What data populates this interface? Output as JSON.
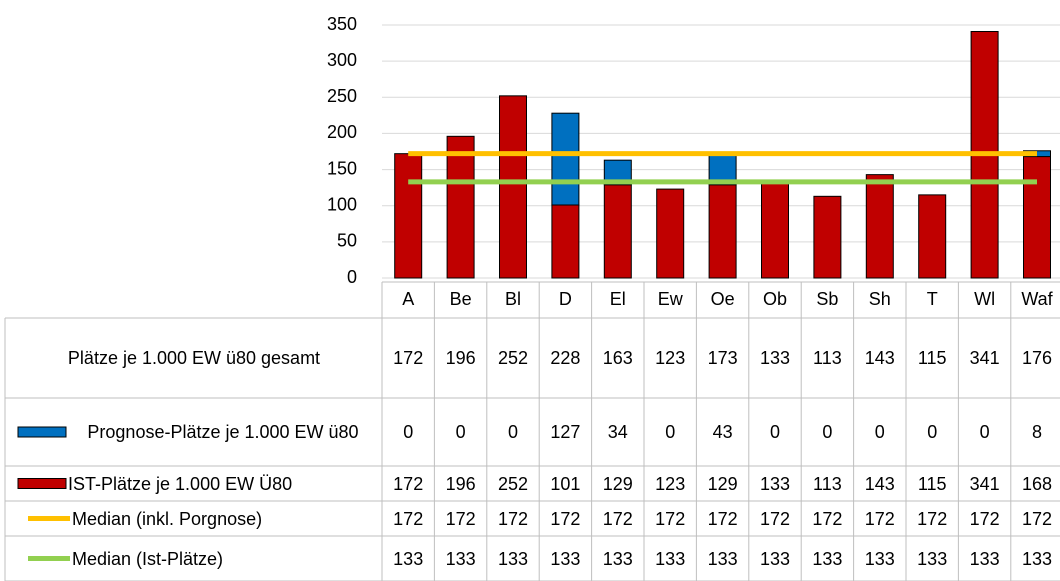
{
  "chart_data": {
    "type": "bar",
    "categories": [
      "A",
      "Be",
      "Bl",
      "D",
      "El",
      "Ew",
      "Oe",
      "Ob",
      "Sb",
      "Sh",
      "T",
      "Wl",
      "Waf"
    ],
    "series": [
      {
        "name": "Plätze je 1.000 EW ü80 gesamt",
        "values": [
          172,
          196,
          252,
          228,
          163,
          123,
          173,
          133,
          113,
          143,
          115,
          341,
          176
        ]
      },
      {
        "name": "Prognose-Plätze je 1.000 EW ü80",
        "color": "#0070c0",
        "kind": "stack",
        "values": [
          0,
          0,
          0,
          127,
          34,
          0,
          43,
          0,
          0,
          0,
          0,
          0,
          8
        ]
      },
      {
        "name": "IST-Plätze je 1.000 EW Ü80",
        "color": "#c00000",
        "kind": "stack",
        "values": [
          172,
          196,
          252,
          101,
          129,
          123,
          129,
          133,
          113,
          143,
          115,
          341,
          168
        ]
      },
      {
        "name": "Median (inkl. Porgnose)",
        "color": "#ffc000",
        "kind": "line",
        "values": [
          172,
          172,
          172,
          172,
          172,
          172,
          172,
          172,
          172,
          172,
          172,
          172,
          172
        ]
      },
      {
        "name": "Median (Ist-Plätze)",
        "color": "#92d050",
        "kind": "line",
        "values": [
          133,
          133,
          133,
          133,
          133,
          133,
          133,
          133,
          133,
          133,
          133,
          133,
          133
        ]
      }
    ],
    "ylim": [
      0,
      350
    ],
    "yticks": [
      0,
      50,
      100,
      150,
      200,
      250,
      300,
      350
    ],
    "grid": true
  }
}
